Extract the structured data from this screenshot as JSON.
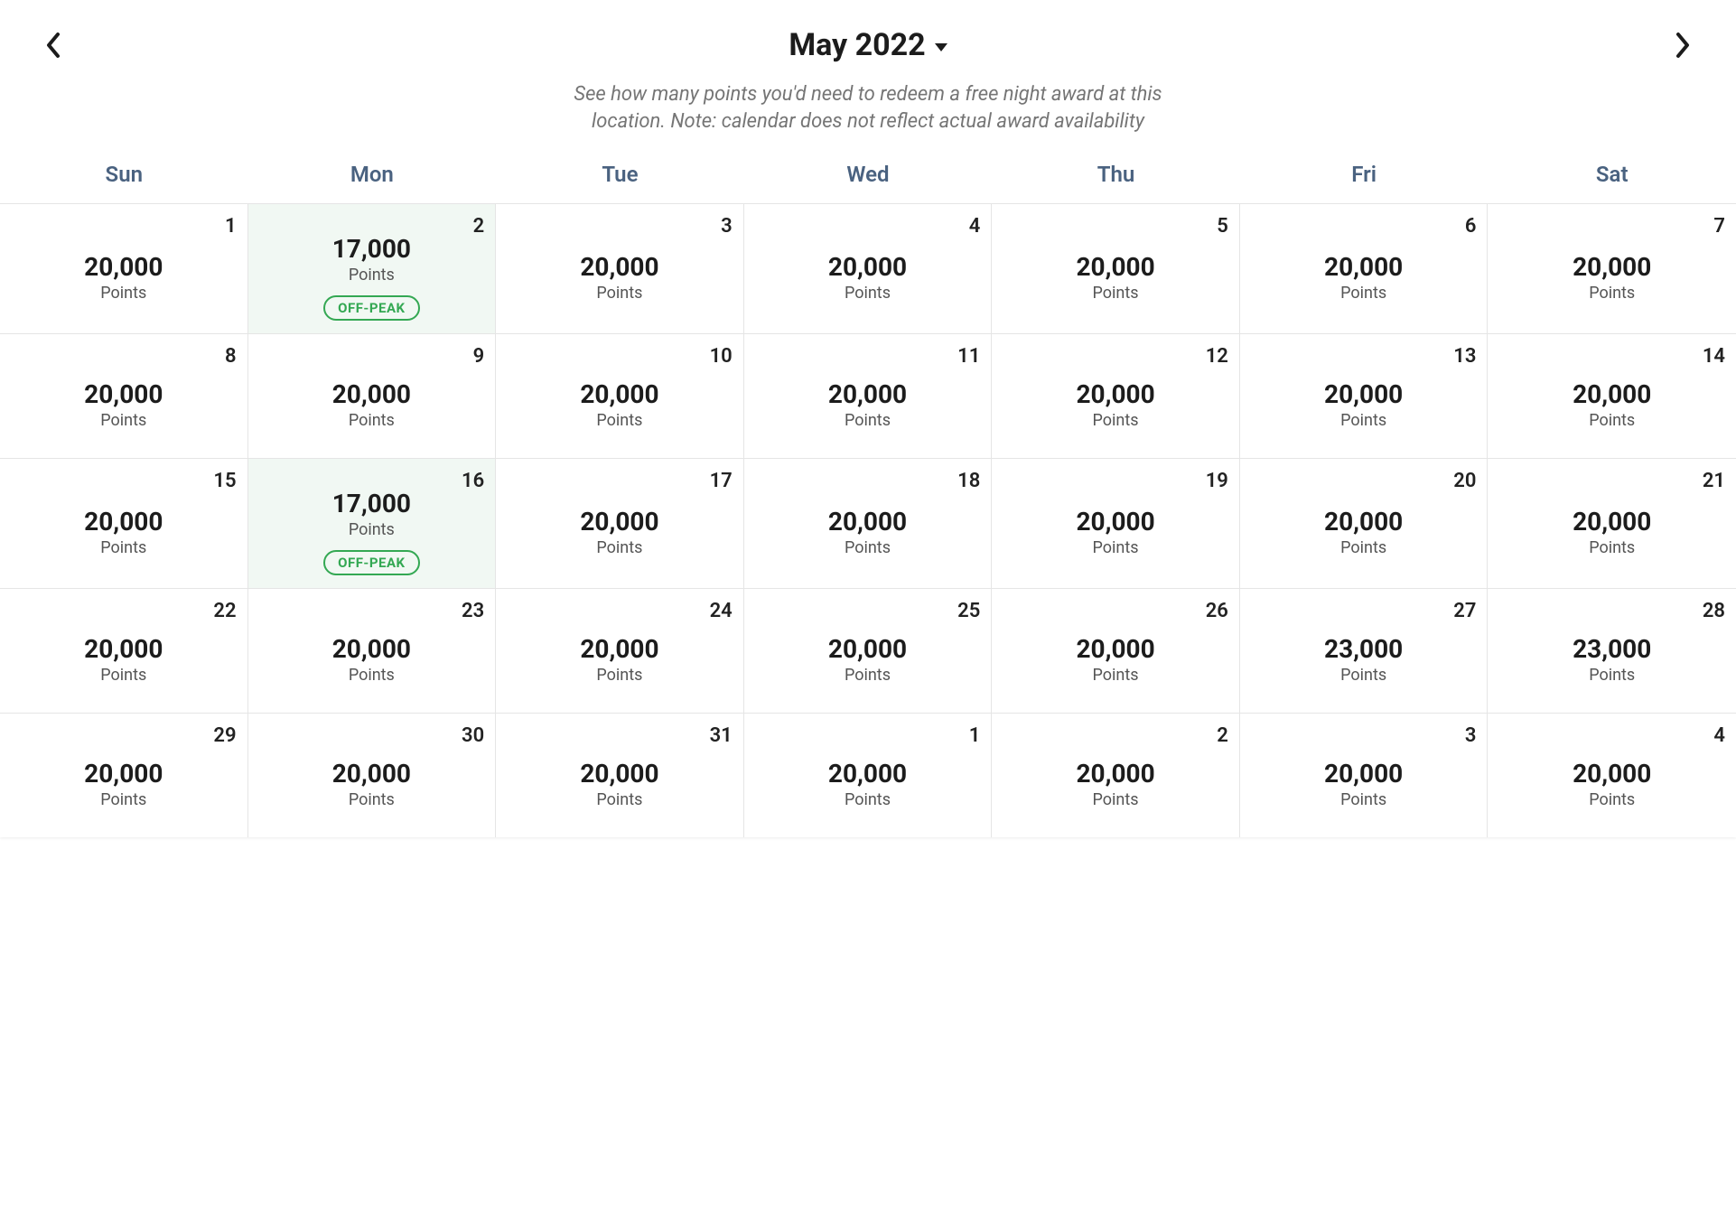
{
  "header": {
    "month_label": "May 2022",
    "subtitle": "See how many points you'd need to redeem a free night award at this location. Note: calendar does not reflect actual award availability"
  },
  "day_of_week_labels": [
    "Sun",
    "Mon",
    "Tue",
    "Wed",
    "Thu",
    "Fri",
    "Sat"
  ],
  "points_unit_label": "Points",
  "badges": {
    "off_peak": "OFF-PEAK"
  },
  "colors": {
    "text_primary": "#1c1c1c",
    "text_muted": "#757575",
    "dow_text": "#4a6280",
    "border": "#e5e5e5",
    "offpeak_bg": "#f1f8f3",
    "badge_green": "#34a853",
    "background": "#ffffff"
  },
  "calendar": {
    "rows": 6,
    "cols": 7,
    "cells": [
      {
        "day": "1",
        "price": "20,000"
      },
      {
        "day": "2",
        "price": "17,000",
        "badge": "off_peak",
        "offpeak": true
      },
      {
        "day": "3",
        "price": "20,000"
      },
      {
        "day": "4",
        "price": "20,000"
      },
      {
        "day": "5",
        "price": "20,000"
      },
      {
        "day": "6",
        "price": "20,000"
      },
      {
        "day": "7",
        "price": "20,000"
      },
      {
        "day": "8",
        "price": "20,000"
      },
      {
        "day": "9",
        "price": "20,000"
      },
      {
        "day": "10",
        "price": "20,000"
      },
      {
        "day": "11",
        "price": "20,000"
      },
      {
        "day": "12",
        "price": "20,000"
      },
      {
        "day": "13",
        "price": "20,000"
      },
      {
        "day": "14",
        "price": "20,000"
      },
      {
        "day": "15",
        "price": "20,000"
      },
      {
        "day": "16",
        "price": "17,000",
        "badge": "off_peak",
        "offpeak": true
      },
      {
        "day": "17",
        "price": "20,000"
      },
      {
        "day": "18",
        "price": "20,000"
      },
      {
        "day": "19",
        "price": "20,000"
      },
      {
        "day": "20",
        "price": "20,000"
      },
      {
        "day": "21",
        "price": "20,000"
      },
      {
        "day": "22",
        "price": "20,000"
      },
      {
        "day": "23",
        "price": "20,000"
      },
      {
        "day": "24",
        "price": "20,000"
      },
      {
        "day": "25",
        "price": "20,000"
      },
      {
        "day": "26",
        "price": "20,000"
      },
      {
        "day": "27",
        "price": "23,000"
      },
      {
        "day": "28",
        "price": "23,000"
      },
      {
        "day": "29",
        "price": "20,000"
      },
      {
        "day": "30",
        "price": "20,000"
      },
      {
        "day": "31",
        "price": "20,000"
      },
      {
        "day": "1",
        "price": "20,000",
        "other_month": true
      },
      {
        "day": "2",
        "price": "20,000",
        "other_month": true
      },
      {
        "day": "3",
        "price": "20,000",
        "other_month": true
      },
      {
        "day": "4",
        "price": "20,000",
        "other_month": true
      }
    ]
  }
}
